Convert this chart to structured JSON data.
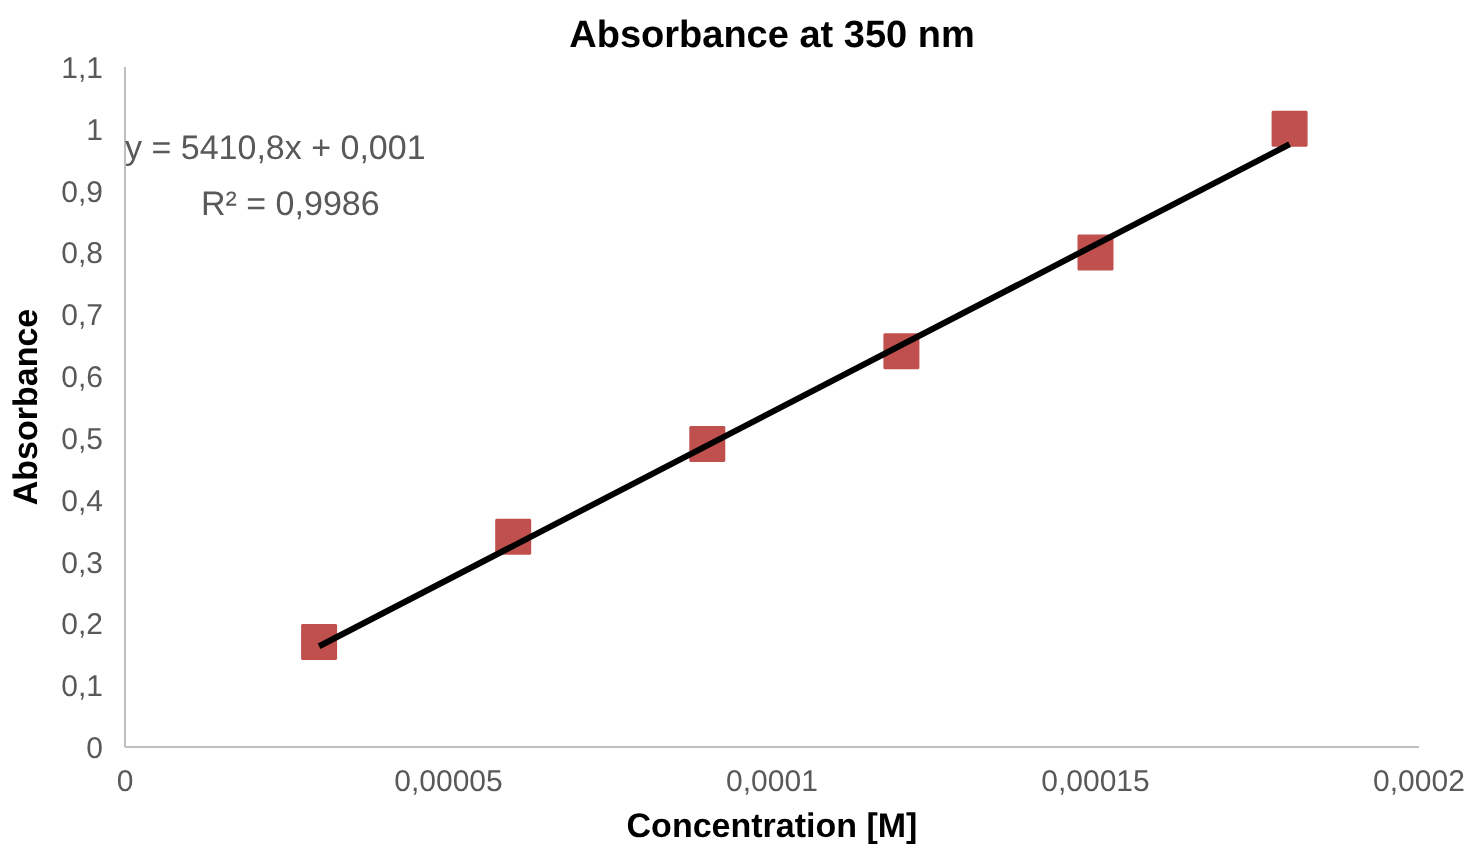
{
  "chart_data": {
    "type": "scatter",
    "title": "Absorbance at 350 nm",
    "xlabel": "Concentration [M]",
    "ylabel": "Absorbance",
    "x": [
      3e-05,
      6e-05,
      9e-05,
      0.00012,
      0.00015,
      0.00018
    ],
    "series": [
      {
        "color": "#c0504d",
        "marker": "square",
        "values": [
          0.17,
          0.34,
          0.49,
          0.64,
          0.8,
          1.0
        ]
      },
      {
        "type": "line",
        "color": "#000000",
        "line_style": "solid",
        "marker": "none",
        "x": [
          3e-05,
          0.00018
        ],
        "values": [
          0.163,
          0.975
        ]
      }
    ],
    "annotations": [
      "y = 5410,8x + 0,001",
      "R² = 0,9986"
    ],
    "xlim": [
      0,
      0.0002
    ],
    "xticks": [
      0,
      {
        "value": 5e-05,
        "label": "0,00005"
      },
      {
        "value": 0.0001,
        "label": "0,0001"
      },
      {
        "value": 0.00015,
        "label": "0,00015"
      },
      {
        "value": 0.0002,
        "label": "0,0002"
      }
    ],
    "ylim": [
      0,
      1.1
    ],
    "yticks": [
      0,
      {
        "value": 0.1,
        "label": "0,1"
      },
      {
        "value": 0.2,
        "label": "0,2"
      },
      {
        "value": 0.3,
        "label": "0,3"
      },
      {
        "value": 0.4,
        "label": "0,4"
      },
      {
        "value": 0.5,
        "label": "0,5"
      },
      {
        "value": 0.6,
        "label": "0,6"
      },
      {
        "value": 0.7,
        "label": "0,7"
      },
      {
        "value": 0.8,
        "label": "0,8"
      },
      {
        "value": 0.9,
        "label": "0,9"
      },
      1,
      {
        "value": 1.1,
        "label": "1,1"
      }
    ],
    "grid": false
  }
}
